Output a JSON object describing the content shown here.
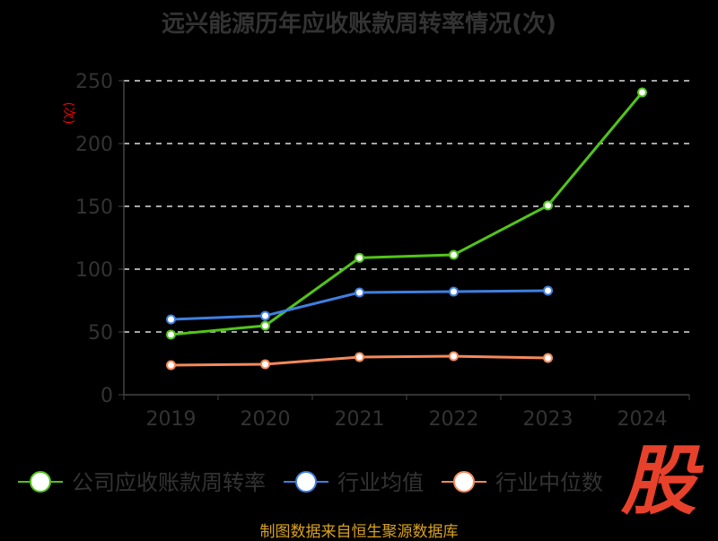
{
  "chart_data": {
    "type": "line",
    "title": "远兴能源历年应收账款周转率情况(次)",
    "ylabel": "(次)",
    "xlabel": "",
    "categories": [
      "2019",
      "2020",
      "2021",
      "2022",
      "2023",
      "2024"
    ],
    "ylim": [
      0,
      250
    ],
    "yticks": [
      0,
      50,
      100,
      150,
      200,
      250
    ],
    "grid": true,
    "legend_position": "bottom",
    "series": [
      {
        "name": "公司应收账款周转率",
        "color": "#52c41a",
        "values": [
          47.9,
          55.0,
          109.0,
          111.4,
          150.7,
          240.7
        ]
      },
      {
        "name": "行业均值",
        "color": "#3f7fe0",
        "values": [
          60.0,
          62.9,
          81.4,
          82.1,
          82.9,
          null
        ]
      },
      {
        "name": "行业中位数",
        "color": "#f5895a",
        "values": [
          23.6,
          24.3,
          30.0,
          30.7,
          29.3,
          null
        ]
      }
    ]
  },
  "footer": "制图数据来自恒生聚源数据库",
  "logo_text": "股"
}
